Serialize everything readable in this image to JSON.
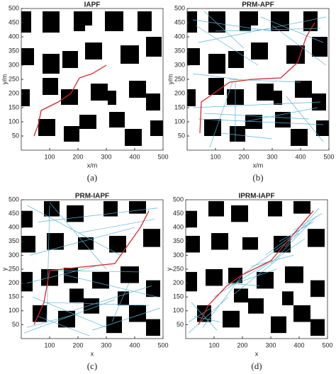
{
  "chart_data": [
    {
      "type": "line",
      "title": "IAPF",
      "x_label": "x/m",
      "y_label": "y/m",
      "caption": "(a)",
      "xlim": [
        0,
        500
      ],
      "ylim": [
        0,
        500
      ],
      "xticks": [
        100,
        200,
        300,
        400,
        500
      ],
      "yticks": [
        50,
        100,
        150,
        200,
        250,
        300,
        350,
        400,
        450,
        500
      ],
      "obstacle_color": "#000000",
      "obstacles": [
        [
          0,
          415,
          35,
          75
        ],
        [
          75,
          415,
          60,
          75
        ],
        [
          185,
          420,
          40,
          70
        ],
        [
          210,
          440,
          40,
          50
        ],
        [
          295,
          420,
          65,
          70
        ],
        [
          410,
          420,
          50,
          70
        ],
        [
          0,
          300,
          45,
          60
        ],
        [
          75,
          270,
          60,
          70
        ],
        [
          145,
          290,
          55,
          60
        ],
        [
          225,
          320,
          60,
          60
        ],
        [
          350,
          305,
          65,
          65
        ],
        [
          440,
          330,
          55,
          70
        ],
        [
          0,
          155,
          30,
          60
        ],
        [
          75,
          195,
          55,
          60
        ],
        [
          140,
          160,
          60,
          55
        ],
        [
          245,
          175,
          60,
          60
        ],
        [
          305,
          160,
          30,
          50
        ],
        [
          380,
          185,
          60,
          60
        ],
        [
          440,
          140,
          50,
          60
        ],
        [
          60,
          50,
          60,
          60
        ],
        [
          150,
          30,
          55,
          55
        ],
        [
          205,
          75,
          60,
          50
        ],
        [
          310,
          80,
          55,
          55
        ],
        [
          365,
          15,
          60,
          60
        ],
        [
          455,
          50,
          45,
          55
        ]
      ],
      "series": [
        {
          "color": "#d62728",
          "x": [
            45,
            60,
            70,
            130,
            175,
            205,
            250,
            300
          ],
          "values": [
            50,
            90,
            140,
            170,
            200,
            255,
            270,
            300
          ]
        }
      ]
    },
    {
      "type": "line",
      "title": "PRM-APF",
      "x_label": "x/m",
      "y_label": "y/m",
      "caption": "(b)",
      "xlim": [
        0,
        500
      ],
      "ylim": [
        0,
        500
      ],
      "xticks": [
        100,
        200,
        300,
        400,
        500
      ],
      "yticks": [
        50,
        100,
        150,
        200,
        250,
        300,
        350,
        400,
        450,
        500
      ],
      "obstacle_color": "#000000",
      "obstacles": [
        [
          0,
          415,
          35,
          75
        ],
        [
          75,
          415,
          60,
          75
        ],
        [
          185,
          420,
          40,
          70
        ],
        [
          210,
          440,
          40,
          50
        ],
        [
          295,
          420,
          65,
          70
        ],
        [
          410,
          420,
          50,
          70
        ],
        [
          0,
          300,
          45,
          60
        ],
        [
          75,
          270,
          60,
          70
        ],
        [
          145,
          290,
          55,
          60
        ],
        [
          225,
          320,
          60,
          60
        ],
        [
          350,
          305,
          65,
          65
        ],
        [
          440,
          330,
          55,
          70
        ],
        [
          0,
          155,
          30,
          60
        ],
        [
          75,
          195,
          55,
          60
        ],
        [
          140,
          160,
          60,
          55
        ],
        [
          245,
          175,
          60,
          60
        ],
        [
          305,
          160,
          30,
          50
        ],
        [
          380,
          185,
          60,
          60
        ],
        [
          440,
          140,
          50,
          60
        ],
        [
          60,
          50,
          60,
          60
        ],
        [
          150,
          30,
          55,
          55
        ],
        [
          205,
          75,
          60,
          50
        ],
        [
          310,
          80,
          55,
          55
        ],
        [
          365,
          15,
          60,
          60
        ],
        [
          455,
          50,
          45,
          55
        ]
      ],
      "series": [
        {
          "color": "#5ab4d6",
          "x": [
            20,
            300,
            null,
            40,
            490,
            null,
            30,
            250,
            null,
            260,
            480,
            null,
            60,
            200,
            null,
            100,
            470,
            null,
            300,
            490,
            null,
            20,
            180,
            null,
            150,
            400,
            null,
            40,
            480,
            null,
            200,
            460,
            null,
            120,
            300,
            null,
            350,
            480,
            null,
            20,
            470,
            null,
            80,
            160,
            null,
            170,
            170,
            null,
            60,
            430
          ],
          "values": [
            460,
            420,
            null,
            380,
            470,
            null,
            440,
            300,
            null,
            470,
            380,
            null,
            490,
            360,
            null,
            420,
            430,
            null,
            440,
            300,
            null,
            270,
            250,
            null,
            250,
            240,
            null,
            110,
            90,
            null,
            100,
            150,
            null,
            60,
            40,
            null,
            190,
            30,
            null,
            150,
            170,
            null,
            10,
            240,
            null,
            30,
            240,
            null,
            130,
            110
          ]
        },
        {
          "color": "#d62728",
          "x": [
            45,
            50,
            150,
            230,
            330,
            390,
            420,
            450
          ],
          "values": [
            60,
            170,
            240,
            250,
            255,
            310,
            400,
            450
          ]
        }
      ]
    },
    {
      "type": "line",
      "title": "PRM-IAPF",
      "x_label": "x",
      "y_label": "y",
      "caption": "(c)",
      "xlim": [
        0,
        500
      ],
      "ylim": [
        0,
        500
      ],
      "xticks": [
        100,
        200,
        300,
        400,
        500
      ],
      "yticks": [
        50,
        100,
        150,
        200,
        250,
        300,
        350,
        400,
        450,
        500
      ],
      "obstacle_color": "#000000",
      "obstacles": [
        [
          0,
          400,
          40,
          60
        ],
        [
          80,
          440,
          55,
          55
        ],
        [
          160,
          420,
          60,
          60
        ],
        [
          290,
          440,
          50,
          55
        ],
        [
          380,
          450,
          60,
          45
        ],
        [
          0,
          310,
          50,
          60
        ],
        [
          90,
          320,
          60,
          60
        ],
        [
          200,
          320,
          55,
          45
        ],
        [
          310,
          310,
          60,
          60
        ],
        [
          430,
          330,
          60,
          65
        ],
        [
          0,
          170,
          40,
          70
        ],
        [
          70,
          190,
          60,
          60
        ],
        [
          150,
          200,
          50,
          55
        ],
        [
          250,
          180,
          60,
          60
        ],
        [
          350,
          200,
          65,
          60
        ],
        [
          440,
          150,
          50,
          60
        ],
        [
          40,
          60,
          50,
          60
        ],
        [
          130,
          40,
          60,
          60
        ],
        [
          220,
          90,
          55,
          55
        ],
        [
          300,
          20,
          55,
          60
        ],
        [
          380,
          60,
          60,
          60
        ],
        [
          440,
          10,
          50,
          60
        ],
        [
          170,
          130,
          50,
          50
        ],
        [
          340,
          120,
          40,
          50
        ]
      ],
      "series": [
        {
          "color": "#5ab4d6",
          "x": [
            20,
            350,
            null,
            60,
            480,
            null,
            100,
            300,
            null,
            200,
            470,
            null,
            30,
            400,
            null,
            90,
            100,
            null,
            100,
            420,
            null,
            20,
            260,
            null,
            150,
            480,
            null,
            40,
            300,
            null,
            180,
            460,
            null,
            10,
            330,
            null,
            250,
            490,
            null,
            60,
            240,
            null,
            320,
            380,
            null,
            80,
            450,
            null,
            20,
            200
          ],
          "values": [
            480,
            300,
            null,
            420,
            470,
            null,
            490,
            250,
            null,
            380,
            430,
            null,
            300,
            400,
            null,
            60,
            480,
            null,
            245,
            240,
            null,
            200,
            260,
            null,
            230,
            150,
            null,
            150,
            40,
            null,
            100,
            190,
            null,
            20,
            140,
            null,
            30,
            110,
            null,
            80,
            10,
            null,
            60,
            200,
            null,
            130,
            120,
            null,
            40,
            90
          ]
        },
        {
          "color": "#d62728",
          "x": [
            45,
            80,
            100,
            190,
            330,
            420,
            450
          ],
          "values": [
            50,
            130,
            245,
            255,
            270,
            400,
            460
          ]
        }
      ]
    },
    {
      "type": "line",
      "title": "IPRM-IAPF",
      "x_label": "x",
      "y_label": "y",
      "caption": "(d)",
      "xlim": [
        0,
        500
      ],
      "ylim": [
        0,
        500
      ],
      "xticks": [
        100,
        200,
        300,
        400,
        500
      ],
      "yticks": [
        50,
        100,
        150,
        200,
        250,
        300,
        350,
        400,
        450,
        500
      ],
      "obstacle_color": "#000000",
      "obstacles": [
        [
          0,
          400,
          40,
          60
        ],
        [
          80,
          440,
          55,
          55
        ],
        [
          160,
          420,
          60,
          60
        ],
        [
          290,
          440,
          50,
          55
        ],
        [
          380,
          450,
          60,
          45
        ],
        [
          0,
          310,
          50,
          60
        ],
        [
          90,
          320,
          60,
          60
        ],
        [
          200,
          320,
          55,
          45
        ],
        [
          310,
          310,
          60,
          60
        ],
        [
          430,
          330,
          60,
          65
        ],
        [
          0,
          170,
          40,
          70
        ],
        [
          70,
          190,
          60,
          60
        ],
        [
          150,
          200,
          50,
          55
        ],
        [
          250,
          180,
          60,
          60
        ],
        [
          350,
          200,
          65,
          60
        ],
        [
          440,
          150,
          50,
          60
        ],
        [
          40,
          60,
          50,
          60
        ],
        [
          130,
          40,
          60,
          60
        ],
        [
          220,
          90,
          55,
          55
        ],
        [
          300,
          20,
          55,
          60
        ],
        [
          380,
          60,
          60,
          60
        ],
        [
          440,
          10,
          50,
          60
        ],
        [
          170,
          130,
          50,
          50
        ],
        [
          340,
          120,
          40,
          50
        ]
      ],
      "series": [
        {
          "color": "#5ab4d6",
          "x": [
            10,
            150,
            null,
            30,
            120,
            null,
            60,
            200,
            null,
            100,
            300,
            null,
            150,
            320,
            null,
            200,
            400,
            null,
            250,
            420,
            null,
            300,
            460,
            null,
            350,
            470,
            null,
            20,
            110,
            null,
            140,
            260,
            null,
            230,
            380,
            null,
            280,
            440,
            null,
            380,
            480,
            null,
            10,
            90,
            null,
            170,
            330,
            null,
            330,
            450
          ],
          "values": [
            20,
            150,
            null,
            80,
            60,
            null,
            40,
            230,
            null,
            150,
            280,
            null,
            190,
            250,
            null,
            230,
            380,
            null,
            240,
            360,
            null,
            270,
            440,
            null,
            330,
            470,
            null,
            130,
            30,
            null,
            200,
            190,
            null,
            260,
            300,
            null,
            300,
            420,
            null,
            390,
            450,
            null,
            60,
            110,
            null,
            160,
            290,
            null,
            350,
            420
          ]
        },
        {
          "color": "#d62728",
          "x": [
            45,
            80,
            145,
            200,
            300,
            400,
            450
          ],
          "values": [
            50,
            120,
            190,
            230,
            280,
            400,
            460
          ]
        }
      ]
    }
  ]
}
